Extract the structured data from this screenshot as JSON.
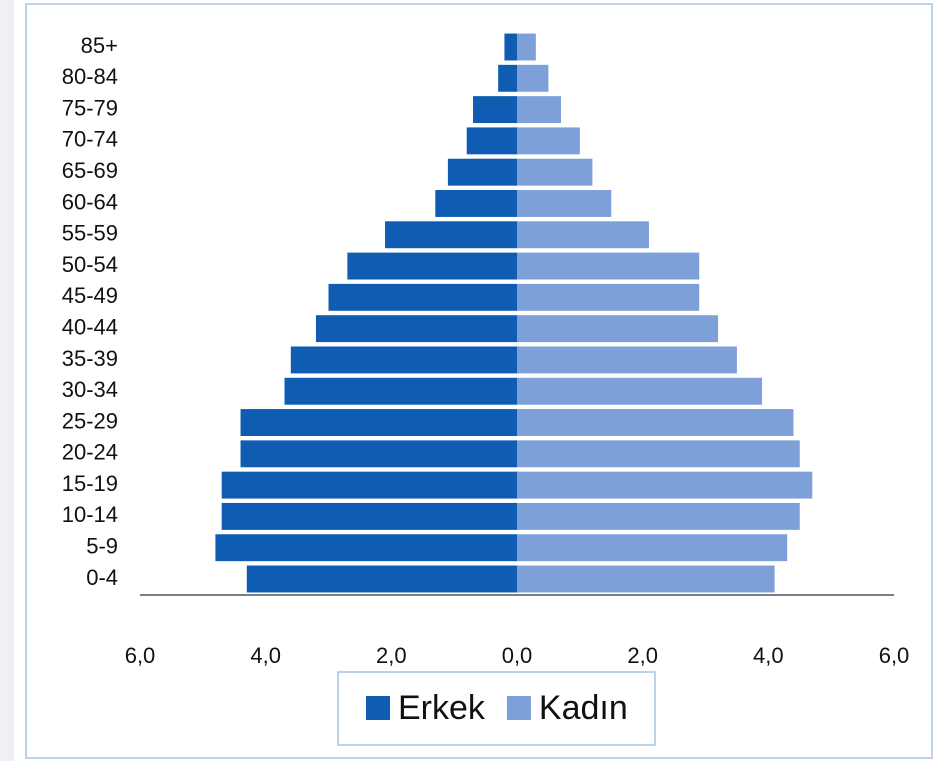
{
  "chart_data": {
    "type": "population_pyramid",
    "categories": [
      "0-4",
      "5-9",
      "10-14",
      "15-19",
      "20-24",
      "25-29",
      "30-34",
      "35-39",
      "40-44",
      "45-49",
      "50-54",
      "55-59",
      "60-64",
      "65-69",
      "70-74",
      "75-79",
      "80-84",
      "85+"
    ],
    "series": [
      {
        "name": "Erkek",
        "color": "#0f5db3",
        "side": "left",
        "values": [
          4.3,
          4.8,
          4.7,
          4.7,
          4.4,
          4.4,
          3.7,
          3.6,
          3.2,
          3.0,
          2.7,
          2.1,
          1.3,
          1.1,
          0.8,
          0.7,
          0.3,
          0.2
        ]
      },
      {
        "name": "Kadın",
        "color": "#7ea0d9",
        "side": "right",
        "values": [
          4.1,
          4.3,
          4.5,
          4.7,
          4.5,
          4.4,
          3.9,
          3.5,
          3.2,
          2.9,
          2.9,
          2.1,
          1.5,
          1.2,
          1.0,
          0.7,
          0.5,
          0.3
        ]
      }
    ],
    "xlim": [
      -6,
      6
    ],
    "xticks": [
      {
        "value": -6,
        "label": "6,0"
      },
      {
        "value": -4,
        "label": "4,0"
      },
      {
        "value": -2,
        "label": "2,0"
      },
      {
        "value": 0,
        "label": "0,0"
      },
      {
        "value": 2,
        "label": "2,0"
      },
      {
        "value": 4,
        "label": "4,0"
      },
      {
        "value": 6,
        "label": "6,0"
      }
    ],
    "legend": "bottom"
  }
}
